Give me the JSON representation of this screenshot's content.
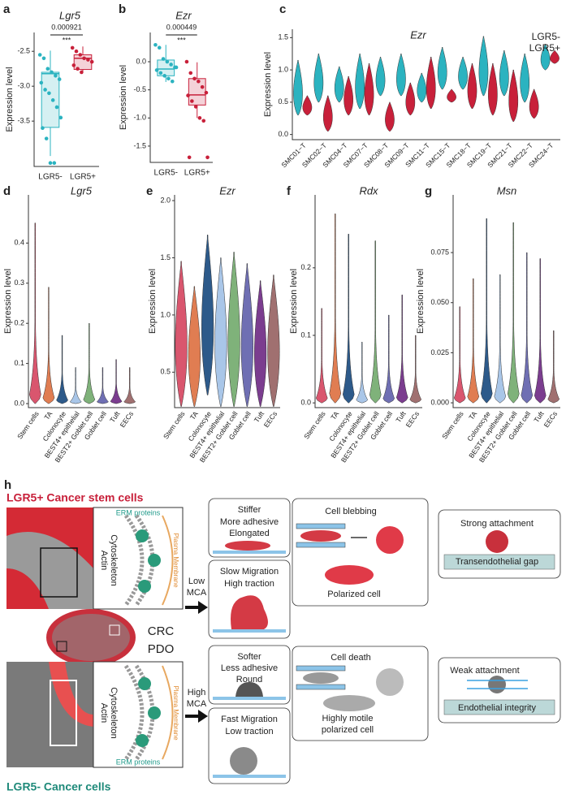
{
  "chart_data": [
    {
      "type": "box",
      "label": "a",
      "title": "Lgr5",
      "annotation": "0.000921",
      "significance": "***",
      "ylabel": "Expression level",
      "categories": [
        "LGR5-",
        "LGR5+"
      ],
      "colors": [
        "#2bb3c0",
        "#c8203a"
      ],
      "ylim": [
        -4.15,
        -2.23
      ],
      "yticks": [
        -2.5,
        {
          "value": -3,
          "label": "-3.0"
        },
        -3.5
      ],
      "boxes": [
        {
          "whisker_low": -4.0,
          "q1": -3.59,
          "median": -2.82,
          "q3": -2.8,
          "whisker_high": -2.49,
          "points": [
            -2.55,
            -2.6,
            -2.75,
            -2.8,
            -2.85,
            -2.9,
            -2.95,
            -3.05,
            -3.1,
            -3.2,
            -3.3,
            -3.45,
            -3.6,
            -3.75,
            -4.1,
            -4.1
          ]
        },
        {
          "whisker_low": -2.81,
          "q1": -2.76,
          "median": -2.6,
          "q3": -2.55,
          "whisker_high": -2.43,
          "points": [
            -2.45,
            -2.5,
            -2.55,
            -2.6,
            -2.62,
            -2.65,
            -2.7,
            -2.75,
            -2.8
          ]
        }
      ]
    },
    {
      "type": "box",
      "label": "b",
      "title": "Ezr",
      "annotation": "0.000449",
      "significance": "***",
      "ylabel": "Expression level",
      "categories": [
        "LGR5-",
        "LGR5+"
      ],
      "colors": [
        "#2bb3c0",
        "#c8203a"
      ],
      "ylim": [
        -1.79,
        0.52
      ],
      "yticks": [
        {
          "value": 0,
          "label": "0.0"
        },
        -0.5,
        {
          "value": -1,
          "label": "-1.0"
        },
        -1.5
      ],
      "boxes": [
        {
          "whisker_low": -0.36,
          "q1": -0.25,
          "median": -0.13,
          "q3": 0.03,
          "whisker_high": 0.3,
          "points": [
            0.3,
            0.25,
            0.05,
            0,
            -0.05,
            -0.1,
            -0.15,
            -0.2,
            -0.25,
            -0.3,
            -0.35,
            -0.1
          ]
        },
        {
          "whisker_low": -1.0,
          "q1": -0.77,
          "median": -0.59,
          "q3": -0.3,
          "whisker_high": -0.01,
          "points": [
            0,
            -0.2,
            -0.3,
            -0.35,
            -0.45,
            -0.55,
            -0.6,
            -0.7,
            -0.8,
            -1.0,
            -1.05,
            -1.7,
            -1.7
          ]
        }
      ]
    },
    {
      "type": "violin",
      "label": "c",
      "title": "Ezr",
      "ylabel": "Expression level",
      "categories": [
        "SMC01−T",
        "SMC02−T",
        "SMC04−T",
        "SMC07−T",
        "SMC08−T",
        "SMC09−T",
        "SMC11−T",
        "SMC15−T",
        "SMC18−T",
        "SMC19−T",
        "SMC21−T",
        "SMC22−T",
        "SMC24−T"
      ],
      "ylim": [
        -0.08,
        1.63
      ],
      "yticks": [
        {
          "value": 0,
          "label": "0.0"
        },
        0.5,
        {
          "value": 1,
          "label": "1.0"
        },
        1.5
      ],
      "legend": "top-right",
      "series": [
        {
          "name": "LGR5-",
          "color": "#2bb3c0",
          "min": [
            0.3,
            0.5,
            0.5,
            0.4,
            0.6,
            0.6,
            0.5,
            0.7,
            0.7,
            0.6,
            0.6,
            0.5,
            1.0
          ],
          "max": [
            1.15,
            1.25,
            1.05,
            1.25,
            1.2,
            1.25,
            0.95,
            1.35,
            1.2,
            1.52,
            1.3,
            1.25,
            1.4
          ]
        },
        {
          "name": "LGR5+",
          "color": "#c8203a",
          "min": [
            0.3,
            0.05,
            0.3,
            0.3,
            0.05,
            0.3,
            0.4,
            0.5,
            0.4,
            0.3,
            0.2,
            0.25,
            1.1
          ],
          "max": [
            0.6,
            0.6,
            0.9,
            1.1,
            0.5,
            0.8,
            1.2,
            0.7,
            1.1,
            1.1,
            1.0,
            0.7,
            1.3
          ]
        }
      ]
    },
    {
      "type": "violin",
      "label": "d",
      "title": "Lgr5",
      "ylabel": "Expression level",
      "categories": [
        "Stem cells",
        "TA",
        "Colonocyte",
        "BEST4+ epithelial",
        "BEST2+ Goblet cell",
        "Goblet cell",
        "Tuft",
        "EECs"
      ],
      "colors": [
        "#d9566e",
        "#e07d52",
        "#2d5a8a",
        "#a9c6e8",
        "#7fb27a",
        "#6f6fb3",
        "#7b3d8f",
        "#a07070"
      ],
      "ylim": [
        -0.01,
        0.52
      ],
      "yticks": [
        {
          "value": 0,
          "label": "0.0"
        },
        0.1,
        0.2,
        0.3,
        0.4
      ],
      "min": [
        0,
        0,
        0,
        0,
        0,
        0,
        0,
        0
      ],
      "max": [
        0.45,
        0.29,
        0.17,
        0.09,
        0.2,
        0.09,
        0.11,
        0.09
      ]
    },
    {
      "type": "violin",
      "label": "e",
      "title": "Ezr",
      "ylabel": "Expression level",
      "categories": [
        "Stem cells",
        "TA",
        "Colonocyte",
        "BEST4+ epithelial",
        "BEST2+ Goblet cell",
        "Goblet cell",
        "Tuft",
        "EECs"
      ],
      "colors": [
        "#d9566e",
        "#e07d52",
        "#2d5a8a",
        "#a9c6e8",
        "#7fb27a",
        "#6f6fb3",
        "#7b3d8f",
        "#a07070"
      ],
      "ylim": [
        0.19,
        2.05
      ],
      "yticks": [
        0.5,
        {
          "value": 1,
          "label": "1.0"
        },
        1.5,
        {
          "value": 2,
          "label": "2.0"
        }
      ],
      "min": [
        0.2,
        0.2,
        0.3,
        0.2,
        0.2,
        0.2,
        0.2,
        0.2
      ],
      "max": [
        1.47,
        1.25,
        1.7,
        1.5,
        1.55,
        1.45,
        1.3,
        1.35
      ]
    },
    {
      "type": "violin",
      "label": "f",
      "title": "Rdx",
      "ylabel": "Expression level",
      "categories": [
        "Stem cells",
        "TA",
        "Colonocyte",
        "BEST4+ epithelial",
        "BEST2+ Goblet cell",
        "Goblet cell",
        "Tuft",
        "EECs"
      ],
      "colors": [
        "#d9566e",
        "#e07d52",
        "#2d5a8a",
        "#a9c6e8",
        "#7fb27a",
        "#6f6fb3",
        "#7b3d8f",
        "#a07070"
      ],
      "ylim": [
        -0.007,
        0.308
      ],
      "yticks": [
        {
          "value": 0,
          "label": "0.0"
        },
        0.1,
        0.2
      ],
      "min": [
        0,
        0,
        0,
        0,
        0,
        0,
        0,
        0
      ],
      "max": [
        0.14,
        0.28,
        0.25,
        0.09,
        0.24,
        0.13,
        0.16,
        0.1
      ]
    },
    {
      "type": "violin",
      "label": "g",
      "title": "Msn",
      "ylabel": "Expression level",
      "categories": [
        "Stem cells",
        "TA",
        "Colonocyte",
        "BEST4+ epithelial",
        "BEST2+ Goblet cell",
        "Goblet cell",
        "Tuft",
        "EECs"
      ],
      "colors": [
        "#d9566e",
        "#e07d52",
        "#2d5a8a",
        "#a9c6e8",
        "#7fb27a",
        "#6f6fb3",
        "#7b3d8f",
        "#a07070"
      ],
      "ylim": [
        -0.0024,
        0.1038
      ],
      "yticks": [
        {
          "value": 0,
          "label": "0.000"
        },
        0.025,
        {
          "value": 0.05,
          "label": "0.050"
        },
        0.075
      ],
      "min": [
        0,
        0,
        0,
        0,
        0,
        0,
        0,
        0
      ],
      "max": [
        0.048,
        0.062,
        0.092,
        0.064,
        0.09,
        0.075,
        0.072,
        0.036
      ]
    }
  ],
  "diagram": {
    "label": "h",
    "top_title": "LGR5+ Cancer stem cells",
    "bottom_title": "LGR5- Cancer cells",
    "erm": [
      "ERM proteins",
      "ERM proteins"
    ],
    "actin": [
      "Actin",
      "Actin"
    ],
    "cytoskeleton": [
      "Cytoskeleton",
      "Cytoskeleton"
    ],
    "membrane": [
      "Plasma Membrane",
      "Plasma Membrane"
    ],
    "organoid": [
      "CRC",
      "PDO"
    ],
    "low_mca": [
      "Low",
      "MCA"
    ],
    "high_mca": [
      "High",
      "MCA"
    ],
    "boxes": [
      [
        "Stiffer",
        "More adhesive",
        "Elongated"
      ],
      [
        "Slow Migration",
        "High traction"
      ],
      [
        "Softer",
        "Less adhesive",
        "Round"
      ],
      [
        "Fast Migration",
        "Low traction"
      ],
      [
        "Cell blebbing",
        "Polarized cell"
      ],
      [
        "Cell death",
        "Highly motile",
        "polarized cell"
      ],
      [
        "Strong attachment",
        "Transendothelial gap"
      ],
      [
        "Weak attachment",
        "Endothelial integrity"
      ]
    ]
  }
}
